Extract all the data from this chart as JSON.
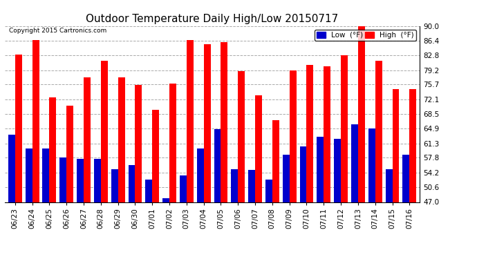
{
  "title": "Outdoor Temperature Daily High/Low 20150717",
  "copyright": "Copyright 2015 Cartronics.com",
  "categories": [
    "06/23",
    "06/24",
    "06/25",
    "06/26",
    "06/27",
    "06/28",
    "06/29",
    "06/30",
    "07/01",
    "07/02",
    "07/03",
    "07/04",
    "07/05",
    "07/06",
    "07/07",
    "07/08",
    "07/09",
    "07/10",
    "07/11",
    "07/12",
    "07/13",
    "07/14",
    "07/15",
    "07/16"
  ],
  "high": [
    83.0,
    86.5,
    72.5,
    70.5,
    77.5,
    81.5,
    77.5,
    75.5,
    69.5,
    76.0,
    86.5,
    85.5,
    86.0,
    79.0,
    73.0,
    67.0,
    79.2,
    80.5,
    80.2,
    82.8,
    90.0,
    81.5,
    74.5,
    74.5
  ],
  "low": [
    63.5,
    60.0,
    60.0,
    57.8,
    57.5,
    57.5,
    55.0,
    56.0,
    52.5,
    48.0,
    53.5,
    60.0,
    64.8,
    55.0,
    54.8,
    52.5,
    58.5,
    60.5,
    63.0,
    62.5,
    66.0,
    65.0,
    55.0,
    58.5
  ],
  "ylim_min": 47.0,
  "ylim_max": 90.0,
  "yticks": [
    47.0,
    50.6,
    54.2,
    57.8,
    61.3,
    64.9,
    68.5,
    72.1,
    75.7,
    79.2,
    82.8,
    86.4,
    90.0
  ],
  "high_color": "#FF0000",
  "low_color": "#0000CC",
  "bg_color": "#FFFFFF",
  "plot_bg_color": "#FFFFFF",
  "grid_color": "#AAAAAA",
  "title_fontsize": 11,
  "legend_low_label": "Low  (°F)",
  "legend_high_label": "High  (°F)"
}
